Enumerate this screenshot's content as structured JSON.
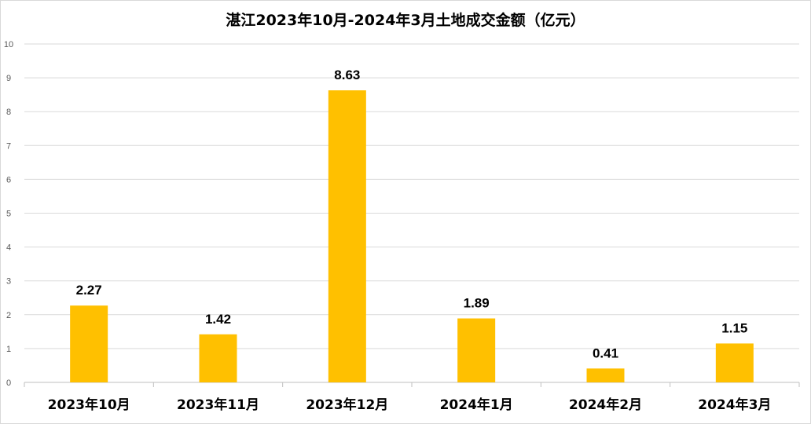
{
  "chart_data": {
    "type": "bar",
    "title": "湛江2023年10月-2024年3月土地成交金额（亿元）",
    "xlabel": "",
    "ylabel": "",
    "categories": [
      "2023年10月",
      "2023年11月",
      "2023年12月",
      "2024年1月",
      "2024年2月",
      "2024年3月"
    ],
    "values": [
      2.27,
      1.42,
      8.63,
      1.89,
      0.41,
      1.15
    ],
    "data_labels": [
      "2.27",
      "1.42",
      "8.63",
      "1.89",
      "0.41",
      "1.15"
    ],
    "ylim": [
      0,
      10
    ],
    "yticks": [
      0,
      1,
      2,
      3,
      4,
      5,
      6,
      7,
      8,
      9,
      10
    ],
    "grid": true,
    "legend": "none",
    "colors": {
      "bar": "#FFC000",
      "grid": "#d9d9d9",
      "axis": "#bfbfbf"
    }
  }
}
